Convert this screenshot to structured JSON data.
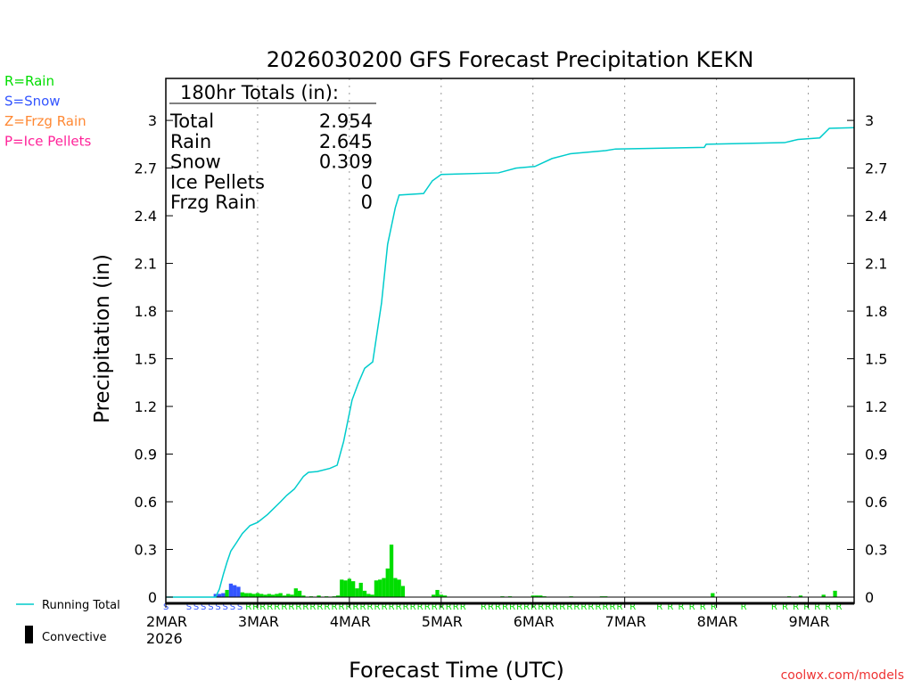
{
  "chart_data": {
    "type": "bar",
    "title": "2026030200 GFS Forecast Precipitation KEKN",
    "xlabel": "Forecast Time (UTC)",
    "ylabel": "Precipitation (in)",
    "ylim": [
      0,
      3.3
    ],
    "xlim_hours": [
      0,
      180
    ],
    "yticks": [
      "0",
      "0.3",
      "0.6",
      "0.9",
      "1.2",
      "1.5",
      "1.8",
      "2.1",
      "2.4",
      "2.7",
      "3"
    ],
    "xticks": [
      {
        "hour": 0,
        "label": "2MAR",
        "sub": "2026"
      },
      {
        "hour": 24,
        "label": "3MAR"
      },
      {
        "hour": 48,
        "label": "4MAR"
      },
      {
        "hour": 72,
        "label": "5MAR"
      },
      {
        "hour": 96,
        "label": "6MAR"
      },
      {
        "hour": 120,
        "label": "7MAR"
      },
      {
        "hour": 144,
        "label": "8MAR"
      },
      {
        "hour": 168,
        "label": "9MAR"
      }
    ],
    "grid": "vertical-dotted",
    "type_legend": [
      {
        "label": "R=Rain",
        "color": "#00dd00"
      },
      {
        "label": "S=Snow",
        "color": "#3355ff"
      },
      {
        "label": "Z=Frzg Rain",
        "color": "#ff8833"
      },
      {
        "label": "P=Ice Pellets",
        "color": "#ff2299"
      }
    ],
    "series_legend": [
      {
        "label": "Running Total",
        "color": "#00cccc"
      },
      {
        "label": "Convective",
        "color": "#000000"
      }
    ],
    "totals": {
      "heading": "180hr Totals (in):",
      "rows": [
        {
          "label": "Total",
          "value": "2.954"
        },
        {
          "label": "Rain",
          "value": "2.645"
        },
        {
          "label": "Snow",
          "value": "0.309"
        },
        {
          "label": "Ice Pellets",
          "value": "0"
        },
        {
          "label": "Frzg Rain",
          "value": "0"
        }
      ]
    },
    "hourly_bars": [
      [
        13,
        0.02,
        "S"
      ],
      [
        14,
        0.02,
        "S"
      ],
      [
        15,
        0.025,
        "S"
      ],
      [
        16,
        0.045,
        "R"
      ],
      [
        17,
        0.085,
        "S"
      ],
      [
        18,
        0.075,
        "S"
      ],
      [
        19,
        0.065,
        "S"
      ],
      [
        20,
        0.03,
        "R"
      ],
      [
        21,
        0.025,
        "R"
      ],
      [
        22,
        0.025,
        "R"
      ],
      [
        23,
        0.02,
        "R"
      ],
      [
        24,
        0.025,
        "R"
      ],
      [
        25,
        0.02,
        "R"
      ],
      [
        26,
        0.015,
        "R"
      ],
      [
        27,
        0.02,
        "R"
      ],
      [
        28,
        0.015,
        "R"
      ],
      [
        29,
        0.02,
        "R"
      ],
      [
        30,
        0.025,
        "R"
      ],
      [
        31,
        0.01,
        "R"
      ],
      [
        32,
        0.02,
        "R"
      ],
      [
        33,
        0.015,
        "R"
      ],
      [
        34,
        0.055,
        "R"
      ],
      [
        35,
        0.04,
        "R"
      ],
      [
        36,
        0.01,
        "R"
      ],
      [
        38,
        0.005,
        "R"
      ],
      [
        40,
        0.01,
        "R"
      ],
      [
        42,
        0.005,
        "R"
      ],
      [
        44,
        0.005,
        "R"
      ],
      [
        45,
        0.01,
        "R"
      ],
      [
        46,
        0.11,
        "R"
      ],
      [
        47,
        0.105,
        "R"
      ],
      [
        48,
        0.115,
        "R"
      ],
      [
        49,
        0.1,
        "R"
      ],
      [
        50,
        0.055,
        "R"
      ],
      [
        51,
        0.09,
        "R"
      ],
      [
        52,
        0.04,
        "R"
      ],
      [
        53,
        0.02,
        "R"
      ],
      [
        54,
        0.015,
        "R"
      ],
      [
        55,
        0.105,
        "R"
      ],
      [
        56,
        0.11,
        "R"
      ],
      [
        57,
        0.12,
        "R"
      ],
      [
        58,
        0.18,
        "R"
      ],
      [
        59,
        0.33,
        "R"
      ],
      [
        60,
        0.12,
        "R"
      ],
      [
        61,
        0.11,
        "R"
      ],
      [
        62,
        0.07,
        "R"
      ],
      [
        70,
        0.015,
        "R"
      ],
      [
        71,
        0.045,
        "R"
      ],
      [
        72,
        0.015,
        "R"
      ],
      [
        73,
        0.01,
        "R"
      ],
      [
        88,
        0.005,
        "R"
      ],
      [
        90,
        0.005,
        "R"
      ],
      [
        96,
        0.01,
        "R"
      ],
      [
        97,
        0.01,
        "R"
      ],
      [
        98,
        0.01,
        "R"
      ],
      [
        99,
        0.005,
        "R"
      ],
      [
        106,
        0.005,
        "R"
      ],
      [
        114,
        0.005,
        "R"
      ],
      [
        115,
        0.005,
        "R"
      ],
      [
        143,
        0.025,
        "R"
      ],
      [
        163,
        0.005,
        "R"
      ],
      [
        166,
        0.01,
        "R"
      ],
      [
        172,
        0.015,
        "R"
      ],
      [
        175,
        0.04,
        "R"
      ]
    ],
    "running_total": [
      [
        0,
        0
      ],
      [
        13,
        0
      ],
      [
        14,
        0.05
      ],
      [
        15,
        0.14
      ],
      [
        16,
        0.22
      ],
      [
        17,
        0.29
      ],
      [
        18.4,
        0.34
      ],
      [
        20,
        0.4
      ],
      [
        22,
        0.45
      ],
      [
        24,
        0.47
      ],
      [
        26.6,
        0.52
      ],
      [
        30,
        0.6
      ],
      [
        31.6,
        0.64
      ],
      [
        33.6,
        0.68
      ],
      [
        36,
        0.76
      ],
      [
        37.3,
        0.785
      ],
      [
        39.6,
        0.79
      ],
      [
        42.9,
        0.81
      ],
      [
        44.8,
        0.83
      ],
      [
        46.5,
        0.98
      ],
      [
        48.7,
        1.24
      ],
      [
        50.4,
        1.35
      ],
      [
        52,
        1.44
      ],
      [
        54.1,
        1.48
      ],
      [
        56.4,
        1.85
      ],
      [
        58,
        2.22
      ],
      [
        60,
        2.45
      ],
      [
        61,
        2.53
      ],
      [
        67.4,
        2.54
      ],
      [
        69.7,
        2.62
      ],
      [
        72,
        2.66
      ],
      [
        87,
        2.67
      ],
      [
        91.6,
        2.7
      ],
      [
        96.5,
        2.71
      ],
      [
        101,
        2.76
      ],
      [
        105.8,
        2.79
      ],
      [
        115,
        2.81
      ],
      [
        117.6,
        2.82
      ],
      [
        140.8,
        2.83
      ],
      [
        141.3,
        2.85
      ],
      [
        161.8,
        2.86
      ],
      [
        165.3,
        2.88
      ],
      [
        171,
        2.89
      ],
      [
        173.5,
        2.95
      ],
      [
        180,
        2.954
      ]
    ],
    "type_marker_ranges": [
      [
        0,
        0,
        "S"
      ],
      [
        6,
        20,
        "S"
      ],
      [
        21,
        78,
        "R"
      ],
      [
        83,
        120,
        "R"
      ],
      [
        122,
        122,
        "R"
      ],
      [
        129,
        146,
        "R"
      ],
      [
        151,
        151,
        "R"
      ],
      [
        159,
        177,
        "R"
      ]
    ]
  },
  "footer": {
    "credit": "coolwx.com/models"
  }
}
